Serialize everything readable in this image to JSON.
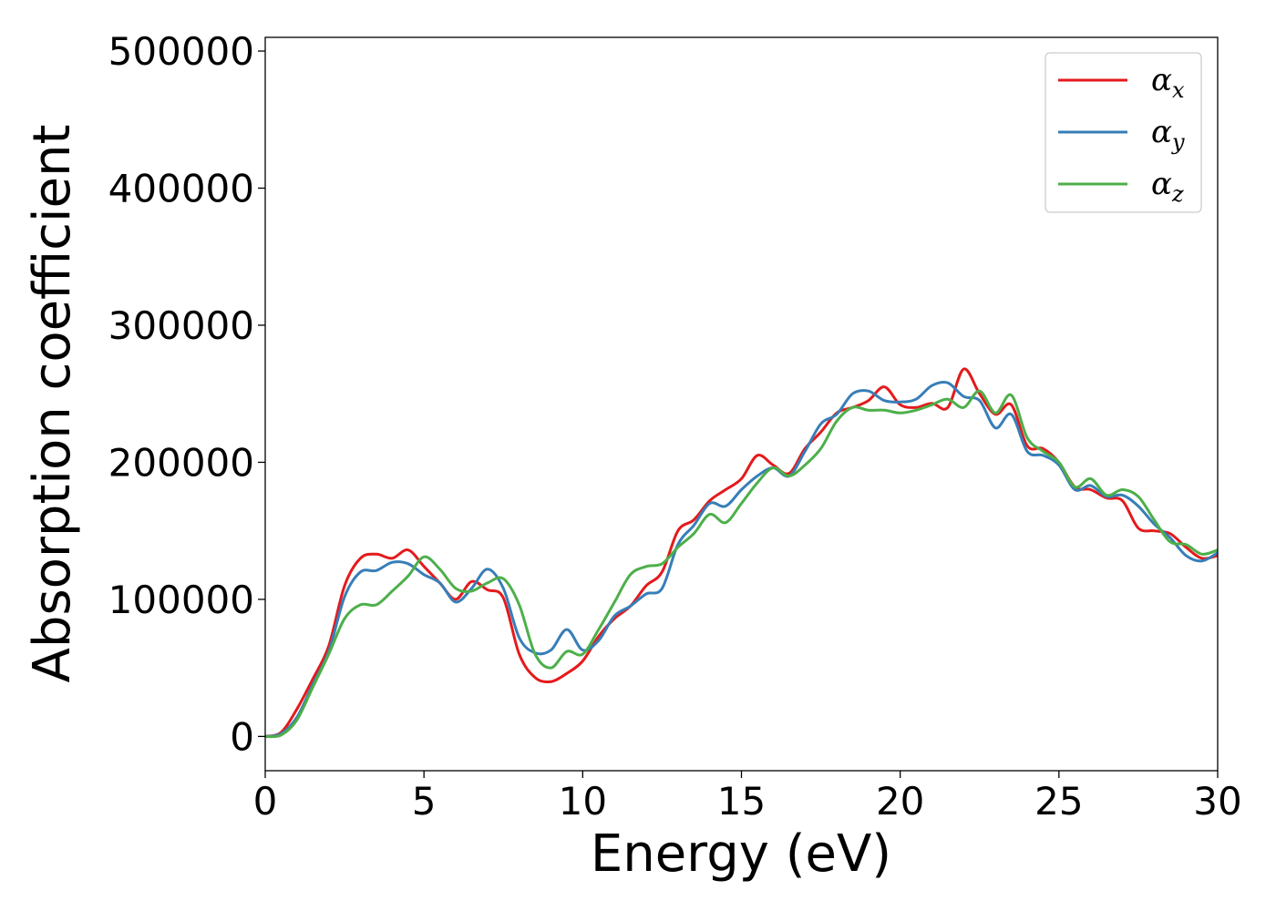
{
  "chart_data": {
    "type": "line",
    "xlabel": "Energy (eV)",
    "ylabel": "Absorption coefficient",
    "xlim": [
      0,
      30
    ],
    "ylim": [
      -25000,
      510000
    ],
    "xticks": [
      0,
      5,
      10,
      15,
      20,
      25,
      30
    ],
    "yticks": [
      0,
      100000,
      200000,
      300000,
      400000,
      500000
    ],
    "xtick_labels": [
      "0",
      "5",
      "10",
      "15",
      "20",
      "25",
      "30"
    ],
    "ytick_labels": [
      "0",
      "100000",
      "200000",
      "300000",
      "400000",
      "500000"
    ],
    "grid": false,
    "legend_position": "top-right",
    "series": [
      {
        "name": "α_x",
        "legend_symbol": "α",
        "legend_sub": "x",
        "color": "#e41a1c",
        "points": [
          [
            0,
            0
          ],
          [
            0.5,
            3000
          ],
          [
            1,
            20000
          ],
          [
            1.5,
            42000
          ],
          [
            2,
            66000
          ],
          [
            2.5,
            110000
          ],
          [
            3,
            130000
          ],
          [
            3.5,
            133000
          ],
          [
            4,
            130000
          ],
          [
            4.5,
            136000
          ],
          [
            5,
            124000
          ],
          [
            5.5,
            112000
          ],
          [
            6,
            100000
          ],
          [
            6.5,
            113000
          ],
          [
            7,
            107000
          ],
          [
            7.5,
            101000
          ],
          [
            8,
            60000
          ],
          [
            8.5,
            43000
          ],
          [
            9,
            40000
          ],
          [
            9.5,
            46000
          ],
          [
            10,
            55000
          ],
          [
            10.5,
            73000
          ],
          [
            11,
            86000
          ],
          [
            11.5,
            95000
          ],
          [
            12,
            110000
          ],
          [
            12.5,
            120000
          ],
          [
            13,
            150000
          ],
          [
            13.5,
            158000
          ],
          [
            14,
            172000
          ],
          [
            14.5,
            180000
          ],
          [
            15,
            188000
          ],
          [
            15.5,
            205000
          ],
          [
            16,
            198000
          ],
          [
            16.5,
            192000
          ],
          [
            17,
            210000
          ],
          [
            17.5,
            222000
          ],
          [
            18,
            236000
          ],
          [
            18.5,
            240000
          ],
          [
            19,
            245000
          ],
          [
            19.5,
            255000
          ],
          [
            20,
            242000
          ],
          [
            20.5,
            240000
          ],
          [
            21,
            243000
          ],
          [
            21.5,
            240000
          ],
          [
            22,
            268000
          ],
          [
            22.5,
            250000
          ],
          [
            23,
            235000
          ],
          [
            23.5,
            242000
          ],
          [
            24,
            212000
          ],
          [
            24.5,
            210000
          ],
          [
            25,
            200000
          ],
          [
            25.5,
            182000
          ],
          [
            26,
            180000
          ],
          [
            26.5,
            174000
          ],
          [
            27,
            172000
          ],
          [
            27.5,
            152000
          ],
          [
            28,
            150000
          ],
          [
            28.5,
            148000
          ],
          [
            29,
            138000
          ],
          [
            29.5,
            130000
          ],
          [
            30,
            132000
          ]
        ]
      },
      {
        "name": "α_y",
        "legend_symbol": "α",
        "legend_sub": "y",
        "color": "#377eb8",
        "points": [
          [
            0,
            0
          ],
          [
            0.5,
            2000
          ],
          [
            1,
            14000
          ],
          [
            1.5,
            38000
          ],
          [
            2,
            62000
          ],
          [
            2.5,
            102000
          ],
          [
            3,
            120000
          ],
          [
            3.5,
            121000
          ],
          [
            4,
            127000
          ],
          [
            4.5,
            126000
          ],
          [
            5,
            118000
          ],
          [
            5.5,
            112000
          ],
          [
            6,
            98000
          ],
          [
            6.5,
            108000
          ],
          [
            7,
            122000
          ],
          [
            7.5,
            108000
          ],
          [
            8,
            72000
          ],
          [
            8.5,
            61000
          ],
          [
            9,
            63000
          ],
          [
            9.5,
            78000
          ],
          [
            10,
            63000
          ],
          [
            10.5,
            70000
          ],
          [
            11,
            88000
          ],
          [
            11.5,
            95000
          ],
          [
            12,
            104000
          ],
          [
            12.5,
            108000
          ],
          [
            13,
            140000
          ],
          [
            13.5,
            154000
          ],
          [
            14,
            170000
          ],
          [
            14.5,
            168000
          ],
          [
            15,
            180000
          ],
          [
            15.5,
            190000
          ],
          [
            16,
            196000
          ],
          [
            16.5,
            190000
          ],
          [
            17,
            208000
          ],
          [
            17.5,
            228000
          ],
          [
            18,
            235000
          ],
          [
            18.5,
            250000
          ],
          [
            19,
            252000
          ],
          [
            19.5,
            245000
          ],
          [
            20,
            244000
          ],
          [
            20.5,
            246000
          ],
          [
            21,
            256000
          ],
          [
            21.5,
            258000
          ],
          [
            22,
            248000
          ],
          [
            22.5,
            245000
          ],
          [
            23,
            225000
          ],
          [
            23.5,
            235000
          ],
          [
            24,
            208000
          ],
          [
            24.5,
            205000
          ],
          [
            25,
            198000
          ],
          [
            25.5,
            180000
          ],
          [
            26,
            183000
          ],
          [
            26.5,
            175000
          ],
          [
            27,
            176000
          ],
          [
            27.5,
            168000
          ],
          [
            28,
            155000
          ],
          [
            28.5,
            145000
          ],
          [
            29,
            132000
          ],
          [
            29.5,
            128000
          ],
          [
            30,
            134000
          ]
        ]
      },
      {
        "name": "α_z",
        "legend_symbol": "α",
        "legend_sub": "z",
        "color": "#4daf4a",
        "points": [
          [
            0,
            0
          ],
          [
            0.5,
            1000
          ],
          [
            1,
            12000
          ],
          [
            1.5,
            36000
          ],
          [
            2,
            60000
          ],
          [
            2.5,
            86000
          ],
          [
            3,
            96000
          ],
          [
            3.5,
            96000
          ],
          [
            4,
            106000
          ],
          [
            4.5,
            117000
          ],
          [
            5,
            131000
          ],
          [
            5.5,
            122000
          ],
          [
            6,
            108000
          ],
          [
            6.5,
            106000
          ],
          [
            7,
            112000
          ],
          [
            7.5,
            115000
          ],
          [
            8,
            96000
          ],
          [
            8.5,
            60000
          ],
          [
            9,
            50000
          ],
          [
            9.5,
            62000
          ],
          [
            10,
            60000
          ],
          [
            10.5,
            78000
          ],
          [
            11,
            98000
          ],
          [
            11.5,
            118000
          ],
          [
            12,
            124000
          ],
          [
            12.5,
            126000
          ],
          [
            13,
            138000
          ],
          [
            13.5,
            148000
          ],
          [
            14,
            162000
          ],
          [
            14.5,
            156000
          ],
          [
            15,
            170000
          ],
          [
            15.5,
            185000
          ],
          [
            16,
            196000
          ],
          [
            16.5,
            190000
          ],
          [
            17,
            198000
          ],
          [
            17.5,
            210000
          ],
          [
            18,
            230000
          ],
          [
            18.5,
            240000
          ],
          [
            19,
            238000
          ],
          [
            19.5,
            238000
          ],
          [
            20,
            236000
          ],
          [
            20.5,
            238000
          ],
          [
            21,
            242000
          ],
          [
            21.5,
            246000
          ],
          [
            22,
            240000
          ],
          [
            22.5,
            252000
          ],
          [
            23,
            236000
          ],
          [
            23.5,
            249000
          ],
          [
            24,
            218000
          ],
          [
            24.5,
            208000
          ],
          [
            25,
            200000
          ],
          [
            25.5,
            182000
          ],
          [
            26,
            188000
          ],
          [
            26.5,
            176000
          ],
          [
            27,
            180000
          ],
          [
            27.5,
            175000
          ],
          [
            28,
            158000
          ],
          [
            28.5,
            142000
          ],
          [
            29,
            140000
          ],
          [
            29.5,
            133000
          ],
          [
            30,
            136000
          ]
        ]
      }
    ]
  }
}
